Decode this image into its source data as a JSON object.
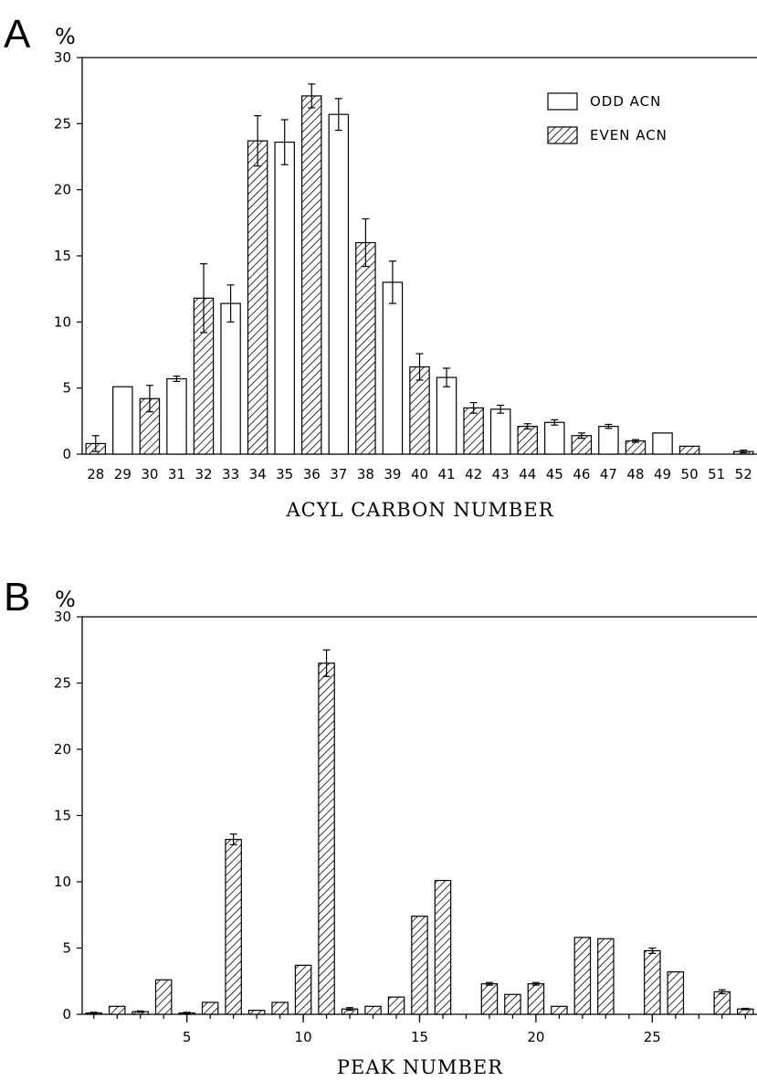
{
  "chart_data": [
    {
      "type": "bar",
      "panel": "A",
      "unit": "%",
      "xlabel": "ACYL CARBON NUMBER",
      "ylabel": "",
      "ylim": [
        0,
        30
      ],
      "yticks": [
        "0",
        "5",
        "10",
        "15",
        "20",
        "25",
        "30"
      ],
      "categories": [
        "28",
        "29",
        "30",
        "31",
        "32",
        "33",
        "34",
        "35",
        "36",
        "37",
        "38",
        "39",
        "40",
        "41",
        "42",
        "43",
        "44",
        "45",
        "46",
        "47",
        "48",
        "49",
        "50",
        "51",
        "52"
      ],
      "values": [
        0.8,
        5.1,
        4.2,
        5.7,
        11.8,
        11.4,
        23.7,
        23.6,
        27.1,
        25.7,
        16.0,
        13.0,
        6.6,
        5.8,
        3.5,
        3.4,
        2.1,
        2.4,
        1.4,
        2.1,
        1.0,
        1.6,
        0.6,
        0.0,
        0.2
      ],
      "errors": [
        0.6,
        0.0,
        1.0,
        0.2,
        2.6,
        1.4,
        1.9,
        1.7,
        0.9,
        1.2,
        1.8,
        1.6,
        1.0,
        0.7,
        0.4,
        0.3,
        0.2,
        0.2,
        0.2,
        0.15,
        0.1,
        0.0,
        0.0,
        0.0,
        0.1
      ],
      "pattern": [
        "hatched",
        "open",
        "hatched",
        "open",
        "hatched",
        "open",
        "hatched",
        "open",
        "hatched",
        "open",
        "hatched",
        "open",
        "hatched",
        "open",
        "hatched",
        "open",
        "hatched",
        "open",
        "hatched",
        "open",
        "hatched",
        "open",
        "hatched",
        "open",
        "hatched"
      ],
      "legend": {
        "position": "top-right",
        "entries": [
          {
            "label": "ODD ACN",
            "pattern": "open"
          },
          {
            "label": "EVEN ACN",
            "pattern": "hatched"
          }
        ]
      },
      "grid": false
    },
    {
      "type": "bar",
      "panel": "B",
      "unit": "%",
      "xlabel": "PEAK NUMBER",
      "ylabel": "",
      "ylim": [
        0,
        30
      ],
      "xlim": [
        0.5,
        29.5
      ],
      "yticks": [
        "0",
        "5",
        "10",
        "15",
        "20",
        "25",
        "30"
      ],
      "xticklabels": [
        "5",
        "10",
        "15",
        "20",
        "25"
      ],
      "xtick_positions": [
        5,
        10,
        15,
        20,
        25
      ],
      "x": [
        1,
        2,
        3,
        4,
        5,
        6,
        7,
        8,
        9,
        10,
        11,
        12,
        13,
        14,
        15,
        16,
        17,
        18,
        19,
        20,
        21,
        22,
        23,
        24,
        25,
        26,
        27,
        28,
        29
      ],
      "values": [
        0.1,
        0.6,
        0.2,
        2.6,
        0.1,
        0.9,
        13.2,
        0.3,
        0.9,
        3.7,
        26.5,
        0.4,
        0.6,
        1.3,
        7.4,
        10.1,
        0.0,
        2.3,
        1.5,
        2.3,
        0.6,
        5.8,
        5.7,
        0.0,
        4.8,
        3.2,
        0.0,
        1.7,
        0.4
      ],
      "errors": [
        0.05,
        0.0,
        0.05,
        0.0,
        0.05,
        0.0,
        0.4,
        0.0,
        0.0,
        0.0,
        1.0,
        0.1,
        0.0,
        0.0,
        0.0,
        0.0,
        0.0,
        0.1,
        0.0,
        0.1,
        0.0,
        0.0,
        0.0,
        0.0,
        0.2,
        0.0,
        0.0,
        0.15,
        0.05
      ],
      "pattern": "hatched",
      "grid": false
    }
  ]
}
